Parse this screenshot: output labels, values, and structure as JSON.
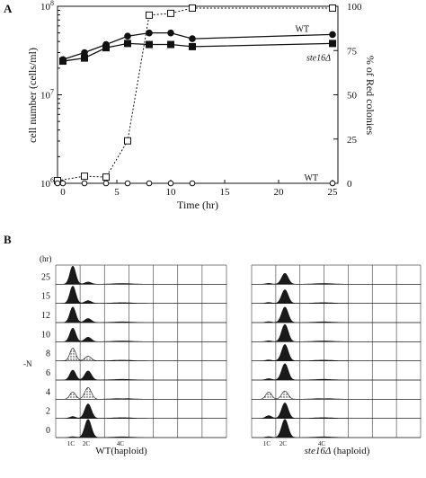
{
  "panel_a_label": "A",
  "panel_b_label": "B",
  "chart_data": [
    {
      "type": "line",
      "panel": "A",
      "xlabel": "Time (hr)",
      "ylabel_left": "cell number (cells/ml)",
      "ylabel_right": "% of Red colonies",
      "x_ticks": [
        "0",
        "5",
        "10",
        "15",
        "20",
        "25"
      ],
      "y_left_ticks": [
        "10^6",
        "10^7",
        "10^8"
      ],
      "y_left_scale": "log",
      "y_left_range": [
        1000000,
        100000000
      ],
      "y_right_ticks": [
        "0",
        "25",
        "50",
        "75",
        "100"
      ],
      "y_right_range": [
        0,
        100
      ],
      "xlim": [
        -0.5,
        25.5
      ],
      "series": [
        {
          "name": "WT",
          "axis": "left",
          "marker": "filled-circle",
          "style": "solid",
          "x": [
            0,
            2,
            4,
            6,
            8,
            10,
            12,
            25
          ],
          "y": [
            25000000,
            30000000,
            37000000,
            46000000,
            50000000,
            50000000,
            43000000,
            48000000
          ]
        },
        {
          "name": "ste16Δ",
          "axis": "left",
          "marker": "filled-square",
          "style": "solid",
          "x": [
            0,
            2,
            4,
            6,
            8,
            10,
            12,
            25
          ],
          "y": [
            24000000,
            26000000,
            34000000,
            38000000,
            37000000,
            37000000,
            35000000,
            38000000
          ]
        },
        {
          "name": "ste16Δ",
          "axis": "right",
          "marker": "open-square",
          "style": "dotted",
          "x": [
            -0.5,
            2,
            4,
            6,
            8,
            10,
            12,
            25
          ],
          "y": [
            1.5,
            4,
            3.5,
            24,
            95,
            96,
            99,
            99
          ]
        },
        {
          "name": "WT",
          "axis": "right",
          "marker": "open-circle",
          "style": "dotted",
          "x": [
            -0.5,
            0,
            2,
            4,
            6,
            8,
            10,
            12,
            25
          ],
          "y": [
            0,
            0,
            0,
            0,
            0,
            0,
            0,
            0,
            0
          ]
        }
      ]
    },
    {
      "type": "area",
      "panel": "B",
      "y_unit_label": "(hr)",
      "side_label": "-N",
      "time_rows": [
        "25",
        "15",
        "12",
        "10",
        "8",
        "6",
        "4",
        "2",
        "0"
      ],
      "x_ticks": [
        "1C",
        "2C",
        "4C"
      ],
      "histograms": [
        {
          "name": "WT(haploid)",
          "name_italic": "",
          "name_rest": "",
          "peaks": [
            {
              "time": "25",
              "1C": 1.0,
              "2C": 0.12,
              "stipple": false
            },
            {
              "time": "15",
              "1C": 0.95,
              "2C": 0.15,
              "stipple": false
            },
            {
              "time": "12",
              "1C": 0.85,
              "2C": 0.22,
              "stipple": false
            },
            {
              "time": "10",
              "1C": 0.75,
              "2C": 0.25,
              "stipple": false
            },
            {
              "time": "8",
              "1C": 0.7,
              "2C": 0.25,
              "stipple": true
            },
            {
              "time": "6",
              "1C": 0.55,
              "2C": 0.5,
              "stipple": false
            },
            {
              "time": "4",
              "1C": 0.4,
              "2C": 0.65,
              "stipple": true
            },
            {
              "time": "2",
              "1C": 0.1,
              "2C": 0.8,
              "stipple": false
            },
            {
              "time": "0",
              "1C": 0.05,
              "2C": 1.0,
              "stipple": false
            }
          ]
        },
        {
          "name": "",
          "name_italic": "ste16Δ",
          "name_rest": " (haploid)",
          "peaks": [
            {
              "time": "25",
              "1C": 0.05,
              "2C": 0.6,
              "stipple": false
            },
            {
              "time": "15",
              "1C": 0.05,
              "2C": 0.75,
              "stipple": false
            },
            {
              "time": "12",
              "1C": 0.05,
              "2C": 0.85,
              "stipple": false
            },
            {
              "time": "10",
              "1C": 0.05,
              "2C": 0.95,
              "stipple": false
            },
            {
              "time": "8",
              "1C": 0.05,
              "2C": 0.9,
              "stipple": false
            },
            {
              "time": "6",
              "1C": 0.08,
              "2C": 0.9,
              "stipple": false
            },
            {
              "time": "4",
              "1C": 0.4,
              "2C": 0.45,
              "stipple": true
            },
            {
              "time": "2",
              "1C": 0.15,
              "2C": 0.85,
              "stipple": false
            },
            {
              "time": "0",
              "1C": 0.05,
              "2C": 1.0,
              "stipple": false
            }
          ]
        }
      ]
    }
  ]
}
